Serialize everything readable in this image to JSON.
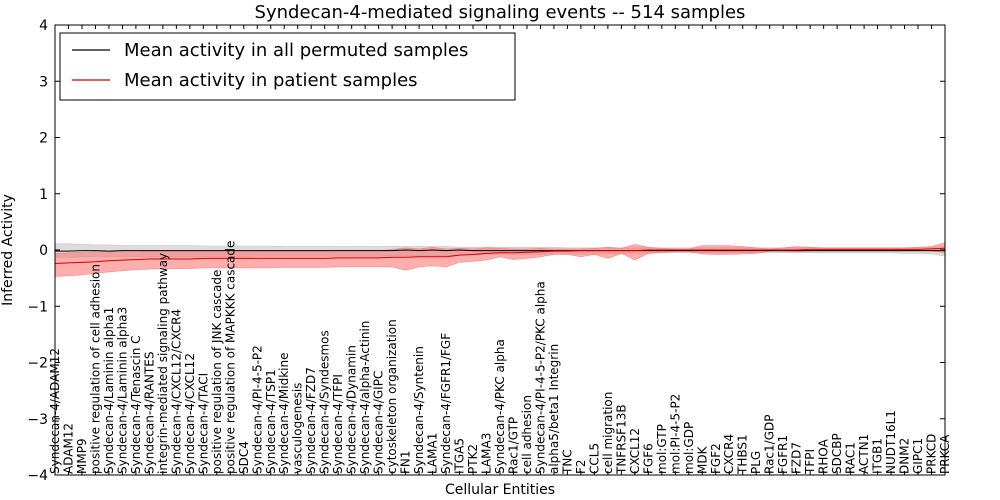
{
  "chart_data": {
    "type": "line",
    "title": "Syndecan-4-mediated signaling events -- 514 samples",
    "xlabel": "Cellular Entities",
    "ylabel": "Inferred Activity",
    "ylim": [
      -4,
      4
    ],
    "yticks": [
      -4,
      -3,
      -2,
      -1,
      0,
      1,
      2,
      3,
      4
    ],
    "grid": false,
    "legend_position": "top-left",
    "colors": {
      "permuted": "#000000",
      "patient": "#d40000",
      "patient_band": "#ff6b6b",
      "permuted_band": "#b3b3b3"
    },
    "categories": [
      "Syndecan-4/ADAM12",
      "ADAM12",
      "MMP9",
      "positive regulation of cell adhesion",
      "Syndecan-4/Laminin alpha1",
      "Syndecan-4/Laminin alpha3",
      "Syndecan-4/Tenascin C",
      "Syndecan-4/RANTES",
      "integrin-mediated signaling pathway",
      "Syndecan-4/CXCL12/CXCR4",
      "Syndecan-4/CXCL12",
      "Syndecan-4/TACI",
      "positive regulation of JNK cascade",
      "positive regulation of MAPKKK cascade",
      "SDC4",
      "Syndecan-4/PI-4-5-P2",
      "Syndecan-4/TSP1",
      "Syndecan-4/Midkine",
      "vasculogenesis",
      "Syndecan-4/FZD7",
      "Syndecan-4/Syndesmos",
      "Syndecan-4/TFPI",
      "Syndecan-4/Dynamin",
      "Syndecan-4/alpha-Actinin",
      "Syndecan-4/GIPC",
      "cytoskeleton organization",
      "FN1",
      "Syndecan-4/Syntenin",
      "LAMA1",
      "Syndecan-4/FGFR1/FGF",
      "ITGA5",
      "PTK2",
      "LAMA3",
      "Syndecan-4/PKC alpha",
      "Rac1/GTP",
      "cell adhesion",
      "Syndecan-4/PI-4-5-P2/PKC alpha",
      "alpha5/beta1 Integrin",
      "TNC",
      "F2",
      "CCL5",
      "cell migration",
      "TNFRSF13B",
      "CXCL12",
      "FGF6",
      "mol:GTP",
      "mol:PI-4-5-P2",
      "mol:GDP",
      "MDK",
      "FGF2",
      "CXCR4",
      "THBS1",
      "PLG",
      "Rac1/GDP",
      "FGFR1",
      "FZD7",
      "TFPI",
      "RHOA",
      "SDCBP",
      "RAC1",
      "ACTN1",
      "ITGB1",
      "NUDT16L1",
      "DNM2",
      "GIPC1",
      "PRKCD",
      "PRKCA"
    ],
    "series": [
      {
        "name": "Mean activity in all permuted samples",
        "values": [
          -0.02,
          -0.02,
          -0.01,
          -0.01,
          -0.02,
          -0.01,
          -0.01,
          -0.01,
          -0.01,
          -0.01,
          -0.01,
          -0.01,
          -0.01,
          -0.01,
          -0.01,
          -0.01,
          -0.01,
          -0.01,
          -0.01,
          -0.01,
          -0.01,
          -0.01,
          -0.01,
          -0.01,
          -0.01,
          -0.01,
          0.0,
          -0.01,
          0.0,
          -0.01,
          0.0,
          -0.01,
          -0.01,
          -0.01,
          -0.01,
          -0.01,
          -0.01,
          -0.01,
          -0.01,
          -0.01,
          -0.01,
          -0.01,
          -0.01,
          -0.01,
          -0.01,
          -0.01,
          -0.01,
          -0.01,
          -0.01,
          -0.01,
          -0.01,
          -0.01,
          -0.01,
          -0.01,
          -0.01,
          -0.01,
          -0.01,
          -0.01,
          -0.01,
          -0.01,
          -0.01,
          -0.01,
          -0.01,
          -0.01,
          -0.01,
          -0.01,
          -0.01
        ],
        "band_low": [
          -0.13,
          -0.13,
          -0.12,
          -0.12,
          -0.12,
          -0.12,
          -0.12,
          -0.12,
          -0.12,
          -0.12,
          -0.12,
          -0.12,
          -0.12,
          -0.12,
          -0.12,
          -0.11,
          -0.11,
          -0.11,
          -0.11,
          -0.11,
          -0.11,
          -0.11,
          -0.11,
          -0.11,
          -0.11,
          -0.1,
          -0.1,
          -0.1,
          -0.1,
          -0.1,
          -0.09,
          -0.09,
          -0.08,
          -0.08,
          -0.08,
          -0.08,
          -0.08,
          -0.07,
          -0.07,
          -0.07,
          -0.07,
          -0.07,
          -0.07,
          -0.06,
          -0.06,
          -0.05,
          -0.05,
          -0.05,
          -0.05,
          -0.05,
          -0.05,
          -0.05,
          -0.05,
          -0.05,
          -0.05,
          -0.05,
          -0.05,
          -0.05,
          -0.05,
          -0.05,
          -0.05,
          -0.05,
          -0.05,
          -0.06,
          -0.06,
          -0.07,
          -0.11
        ],
        "band_high": [
          0.11,
          0.11,
          0.1,
          0.09,
          0.09,
          0.08,
          0.08,
          0.08,
          0.08,
          0.08,
          0.08,
          0.07,
          0.07,
          0.07,
          0.07,
          0.07,
          0.07,
          0.06,
          0.06,
          0.06,
          0.06,
          0.06,
          0.06,
          0.06,
          0.06,
          0.06,
          0.06,
          0.06,
          0.06,
          0.06,
          0.05,
          0.05,
          0.05,
          0.05,
          0.05,
          0.05,
          0.05,
          0.05,
          0.04,
          0.04,
          0.04,
          0.04,
          0.04,
          0.04,
          0.04,
          0.04,
          0.04,
          0.04,
          0.04,
          0.04,
          0.04,
          0.04,
          0.04,
          0.04,
          0.04,
          0.04,
          0.04,
          0.04,
          0.04,
          0.04,
          0.04,
          0.04,
          0.04,
          0.04,
          0.04,
          0.05,
          0.06
        ]
      },
      {
        "name": "Mean activity in patient samples",
        "values": [
          -0.24,
          -0.23,
          -0.22,
          -0.21,
          -0.19,
          -0.18,
          -0.17,
          -0.16,
          -0.16,
          -0.16,
          -0.16,
          -0.15,
          -0.15,
          -0.15,
          -0.15,
          -0.15,
          -0.15,
          -0.15,
          -0.15,
          -0.15,
          -0.15,
          -0.14,
          -0.14,
          -0.14,
          -0.14,
          -0.13,
          -0.13,
          -0.12,
          -0.12,
          -0.12,
          -0.09,
          -0.08,
          -0.06,
          -0.05,
          -0.05,
          -0.04,
          -0.03,
          -0.02,
          -0.02,
          -0.01,
          -0.01,
          -0.01,
          -0.01,
          -0.01,
          0.0,
          0.0,
          0.0,
          0.0,
          0.0,
          0.0,
          0.0,
          0.0,
          0.0,
          0.0,
          0.0,
          0.0,
          0.01,
          0.01,
          0.01,
          0.01,
          0.01,
          0.01,
          0.01,
          0.01,
          0.01,
          0.02,
          0.03
        ],
        "band_low": [
          -0.47,
          -0.46,
          -0.44,
          -0.42,
          -0.39,
          -0.37,
          -0.35,
          -0.34,
          -0.33,
          -0.33,
          -0.33,
          -0.32,
          -0.32,
          -0.32,
          -0.32,
          -0.32,
          -0.32,
          -0.31,
          -0.31,
          -0.31,
          -0.31,
          -0.3,
          -0.3,
          -0.3,
          -0.3,
          -0.3,
          -0.36,
          -0.3,
          -0.28,
          -0.3,
          -0.22,
          -0.2,
          -0.18,
          -0.12,
          -0.17,
          -0.15,
          -0.12,
          -0.08,
          -0.08,
          -0.12,
          -0.08,
          -0.15,
          -0.06,
          -0.18,
          -0.06,
          -0.04,
          -0.03,
          -0.03,
          -0.07,
          -0.08,
          -0.08,
          -0.07,
          -0.06,
          -0.02,
          -0.02,
          -0.03,
          -0.02,
          -0.02,
          -0.02,
          -0.02,
          -0.02,
          -0.02,
          -0.02,
          -0.02,
          -0.02,
          -0.02,
          -0.05
        ],
        "band_high": [
          -0.06,
          -0.05,
          -0.04,
          -0.03,
          -0.03,
          -0.03,
          -0.03,
          -0.02,
          -0.02,
          -0.02,
          -0.02,
          -0.02,
          -0.02,
          -0.02,
          -0.02,
          -0.02,
          -0.02,
          -0.02,
          -0.02,
          -0.02,
          -0.02,
          -0.01,
          -0.01,
          -0.01,
          -0.01,
          0.01,
          0.04,
          0.02,
          0.05,
          0.02,
          0.03,
          0.02,
          0.04,
          0.03,
          0.02,
          0.02,
          0.03,
          0.02,
          0.02,
          0.02,
          0.03,
          0.05,
          0.03,
          0.1,
          0.05,
          0.03,
          0.02,
          0.02,
          0.08,
          0.08,
          0.08,
          0.06,
          0.04,
          0.02,
          0.04,
          0.06,
          0.05,
          0.04,
          0.04,
          0.04,
          0.04,
          0.04,
          0.04,
          0.04,
          0.05,
          0.06,
          0.13
        ]
      }
    ]
  }
}
